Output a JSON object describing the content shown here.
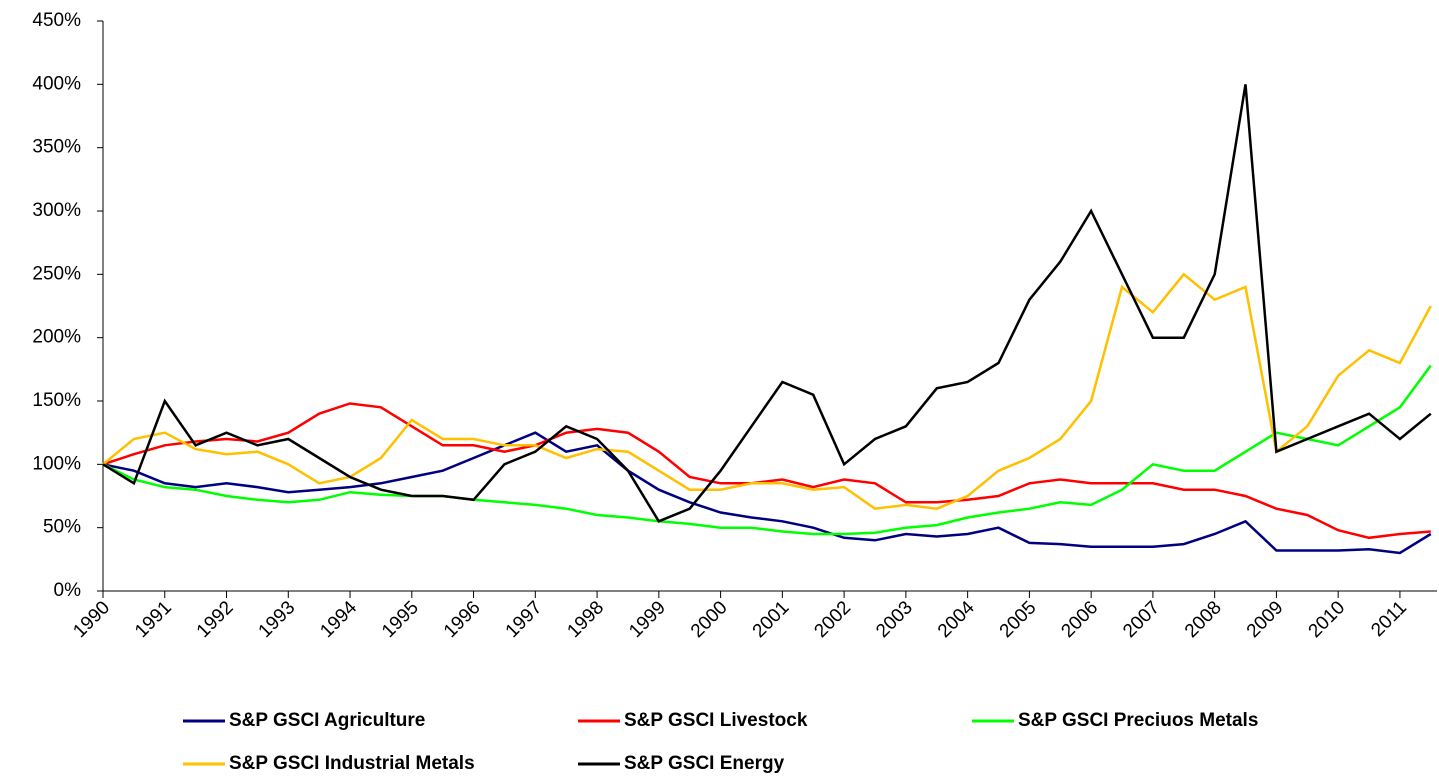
{
  "chart_data": {
    "type": "line",
    "x": [
      1990,
      1990.5,
      1991,
      1991.5,
      1992,
      1992.5,
      1993,
      1993.5,
      1994,
      1994.5,
      1995,
      1995.5,
      1996,
      1996.5,
      1997,
      1997.5,
      1998,
      1998.5,
      1999,
      1999.5,
      2000,
      2000.5,
      2001,
      2001.5,
      2002,
      2002.5,
      2003,
      2003.5,
      2004,
      2004.5,
      2005,
      2005.5,
      2006,
      2006.5,
      2007,
      2007.5,
      2008,
      2008.5,
      2009,
      2009.5,
      2010,
      2010.5,
      2011,
      2011.5
    ],
    "series": [
      {
        "name": "S&P GSCI Agriculture",
        "color": "#000080",
        "values": [
          100,
          95,
          85,
          82,
          85,
          82,
          78,
          80,
          82,
          85,
          90,
          95,
          105,
          115,
          125,
          110,
          115,
          95,
          80,
          70,
          62,
          58,
          55,
          50,
          42,
          40,
          45,
          43,
          45,
          50,
          38,
          37,
          35,
          35,
          35,
          37,
          45,
          55,
          32,
          32,
          32,
          33,
          30,
          45
        ]
      },
      {
        "name": "S&P GSCI Livestock",
        "color": "#ff0000",
        "values": [
          100,
          108,
          115,
          118,
          120,
          118,
          125,
          140,
          148,
          145,
          130,
          115,
          115,
          110,
          115,
          125,
          128,
          125,
          110,
          90,
          85,
          85,
          88,
          82,
          88,
          85,
          70,
          70,
          72,
          75,
          85,
          88,
          85,
          85,
          85,
          80,
          80,
          75,
          65,
          60,
          48,
          42,
          45,
          47
        ]
      },
      {
        "name": "S&P GSCI Preciuos Metals",
        "color": "#00ff00",
        "values": [
          100,
          88,
          82,
          80,
          75,
          72,
          70,
          72,
          78,
          76,
          75,
          75,
          72,
          70,
          68,
          65,
          60,
          58,
          55,
          53,
          50,
          50,
          47,
          45,
          45,
          46,
          50,
          52,
          58,
          62,
          65,
          70,
          68,
          80,
          100,
          95,
          95,
          110,
          125,
          120,
          115,
          130,
          145,
          178
        ]
      },
      {
        "name": "S&P GSCI Industrial Metals",
        "color": "#ffc000",
        "values": [
          100,
          120,
          125,
          112,
          108,
          110,
          100,
          85,
          90,
          105,
          135,
          120,
          120,
          115,
          115,
          105,
          112,
          110,
          95,
          80,
          80,
          85,
          85,
          80,
          82,
          65,
          68,
          65,
          75,
          95,
          105,
          120,
          150,
          240,
          220,
          250,
          230,
          240,
          110,
          130,
          170,
          190,
          180,
          225
        ]
      },
      {
        "name": "S&P GSCI Energy",
        "color": "#000000",
        "values": [
          100,
          85,
          150,
          115,
          125,
          115,
          120,
          105,
          90,
          80,
          75,
          75,
          72,
          100,
          110,
          130,
          120,
          95,
          55,
          65,
          95,
          130,
          165,
          155,
          100,
          120,
          130,
          160,
          165,
          180,
          230,
          260,
          300,
          250,
          200,
          200,
          250,
          400,
          110,
          120,
          130,
          140,
          120,
          140
        ]
      }
    ],
    "xlim": [
      1990,
      2011.6
    ],
    "xticks": [
      1990,
      1991,
      1992,
      1993,
      1994,
      1995,
      1996,
      1997,
      1998,
      1999,
      2000,
      2001,
      2002,
      2003,
      2004,
      2005,
      2006,
      2007,
      2008,
      2009,
      2010,
      2011
    ],
    "ylim": [
      0,
      450
    ],
    "yticks": [
      {
        "value": 0,
        "label": "0%"
      },
      {
        "value": 50,
        "label": "50%"
      },
      {
        "value": 100,
        "label": "100%"
      },
      {
        "value": 150,
        "label": "150%"
      },
      {
        "value": 200,
        "label": "200%"
      },
      {
        "value": 250,
        "label": "250%"
      },
      {
        "value": 300,
        "label": "300%"
      },
      {
        "value": 350,
        "label": "350%"
      },
      {
        "value": 400,
        "label": "400%"
      },
      {
        "value": 450,
        "label": "450%"
      }
    ],
    "legend": "bottom"
  }
}
